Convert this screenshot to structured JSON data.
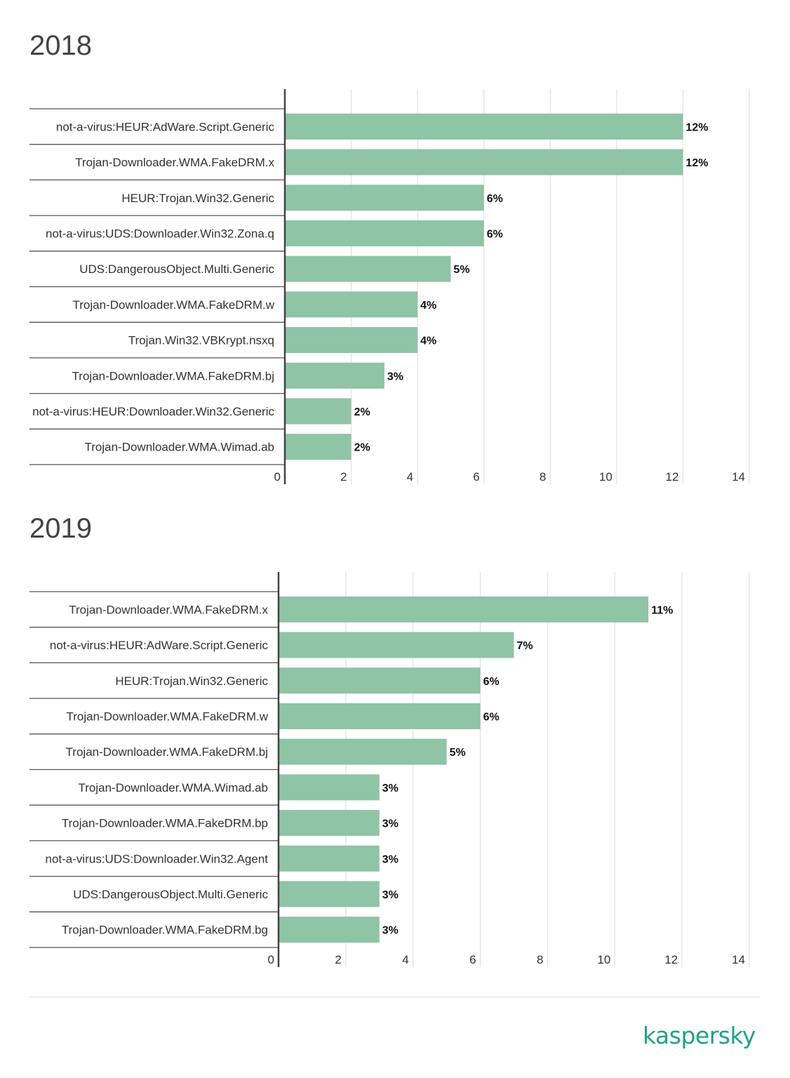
{
  "colors": {
    "bar": "#8fc4a5",
    "axis": "#444444",
    "grid": "#dddddd",
    "brand": "#1fa383"
  },
  "chart_data": [
    {
      "type": "bar",
      "orientation": "horizontal",
      "title": "2018",
      "categories": [
        "not-a-virus:HEUR:AdWare.Script.Generic",
        "Trojan-Downloader.WMA.FakeDRM.x",
        "HEUR:Trojan.Win32.Generic",
        "not-a-virus:UDS:Downloader.Win32.Zona.q",
        "UDS:DangerousObject.Multi.Generic",
        "Trojan-Downloader.WMA.FakeDRM.w",
        "Trojan.Win32.VBKrypt.nsxq",
        "Trojan-Downloader.WMA.FakeDRM.bj",
        "not-a-virus:HEUR:Downloader.Win32.Generic",
        "Trojan-Downloader.WMA.Wimad.ab"
      ],
      "values": [
        12,
        12,
        6,
        6,
        5,
        4,
        4,
        3,
        2,
        2
      ],
      "data_labels": [
        "12%",
        "12%",
        "6%",
        "6%",
        "5%",
        "4%",
        "4%",
        "3%",
        "2%",
        "2%"
      ],
      "xlim": [
        0,
        14
      ],
      "xticks": [
        "0",
        "2",
        "4",
        "6",
        "8",
        "10",
        "12",
        "14"
      ],
      "grid": true
    },
    {
      "type": "bar",
      "orientation": "horizontal",
      "title": "2019",
      "categories": [
        "Trojan-Downloader.WMA.FakeDRM.x",
        "not-a-virus:HEUR:AdWare.Script.Generic",
        "HEUR:Trojan.Win32.Generic",
        "Trojan-Downloader.WMA.FakeDRM.w",
        "Trojan-Downloader.WMA.FakeDRM.bj",
        "Trojan-Downloader.WMA.Wimad.ab",
        "Trojan-Downloader.WMA.FakeDRM.bp",
        "not-a-virus:UDS:Downloader.Win32.Agent",
        "UDS:DangerousObject.Multi.Generic",
        "Trojan-Downloader.WMA.FakeDRM.bg"
      ],
      "values": [
        11,
        7,
        6,
        6,
        5,
        3,
        3,
        3,
        3,
        3
      ],
      "data_labels": [
        "11%",
        "7%",
        "6%",
        "6%",
        "5%",
        "3%",
        "3%",
        "3%",
        "3%",
        "3%"
      ],
      "xlim": [
        0,
        14
      ],
      "xticks": [
        "0",
        "2",
        "4",
        "6",
        "8",
        "10",
        "12",
        "14"
      ],
      "grid": true
    }
  ],
  "footer": {
    "logo": "kaspersky"
  }
}
